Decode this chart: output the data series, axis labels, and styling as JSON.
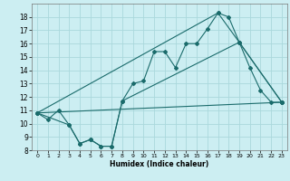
{
  "xlabel": "Humidex (Indice chaleur)",
  "bg_color": "#cceef2",
  "grid_color": "#aad8dc",
  "line_color": "#1a6b6b",
  "xlim": [
    -0.5,
    23.5
  ],
  "ylim": [
    8,
    19
  ],
  "xticks": [
    0,
    1,
    2,
    3,
    4,
    5,
    6,
    7,
    8,
    9,
    10,
    11,
    12,
    13,
    14,
    15,
    16,
    17,
    18,
    19,
    20,
    21,
    22,
    23
  ],
  "yticks": [
    8,
    9,
    10,
    11,
    12,
    13,
    14,
    15,
    16,
    17,
    18
  ],
  "series1_x": [
    0,
    1,
    2,
    3,
    4,
    5,
    6,
    7,
    8,
    9,
    10,
    11,
    12,
    13,
    14,
    15,
    16,
    17,
    18,
    19,
    20,
    21,
    22,
    23
  ],
  "series1_y": [
    10.8,
    10.3,
    11.0,
    9.9,
    8.5,
    8.8,
    8.3,
    8.3,
    11.7,
    13.0,
    13.2,
    15.4,
    15.4,
    14.2,
    16.0,
    16.0,
    17.1,
    18.3,
    18.0,
    16.1,
    14.2,
    12.5,
    11.6,
    11.6
  ],
  "series2_x": [
    0,
    23
  ],
  "series2_y": [
    10.8,
    11.6
  ],
  "series3_x": [
    0,
    3,
    4,
    5,
    6,
    7,
    8,
    19,
    23
  ],
  "series3_y": [
    10.8,
    9.9,
    8.5,
    8.8,
    8.3,
    8.3,
    11.7,
    16.1,
    11.6
  ],
  "series4_x": [
    0,
    17,
    19,
    23
  ],
  "series4_y": [
    10.8,
    18.3,
    16.1,
    11.6
  ]
}
